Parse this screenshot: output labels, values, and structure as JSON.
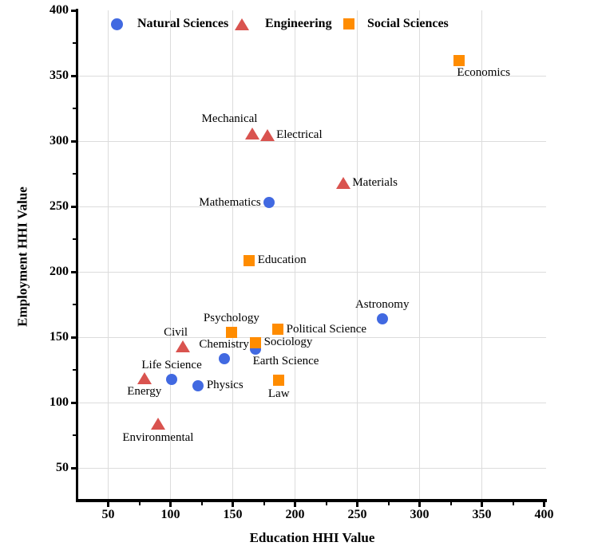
{
  "chart_data": {
    "type": "scatter",
    "title": "",
    "xlabel": "Education HHI Value",
    "ylabel": "Employment HHI Value",
    "xlim": [
      25,
      400
    ],
    "ylim": [
      25,
      400
    ],
    "x_ticks": [
      50,
      100,
      150,
      200,
      250,
      300,
      350,
      400
    ],
    "y_ticks": [
      50,
      100,
      150,
      200,
      250,
      300,
      350,
      400
    ],
    "minor_ticks_x": [
      75,
      125,
      175,
      225,
      275,
      325,
      375
    ],
    "minor_ticks_y": [
      75,
      125,
      175,
      225,
      275,
      325,
      375
    ],
    "grid": "major only, values 50-350, light gray",
    "grid_color": "#dcdcdc",
    "axis_color": "#000000",
    "legend_position": "top-inside, horizontal, no frame",
    "series": [
      {
        "name": "Natural Sciences",
        "marker": "circle",
        "color": "#4169E1",
        "points": [
          {
            "label": "Mathematics",
            "x": 179,
            "y": 253,
            "label_pos": "left"
          },
          {
            "label": "Astronomy",
            "x": 270,
            "y": 164,
            "label_pos": "above"
          },
          {
            "label": "Chemistry",
            "x": 143,
            "y": 134,
            "label_pos": "above"
          },
          {
            "label": "Earth Science",
            "x": 168,
            "y": 141,
            "label_pos": "below-right"
          },
          {
            "label": "Life Science",
            "x": 101,
            "y": 118,
            "label_pos": "above"
          },
          {
            "label": "Physics",
            "x": 122,
            "y": 113,
            "label_pos": "right"
          }
        ]
      },
      {
        "name": "Engineering",
        "marker": "triangle",
        "color": "#D9534F",
        "points": [
          {
            "label": "Mechanical",
            "x": 166,
            "y": 306,
            "label_pos": "above-left"
          },
          {
            "label": "Electrical",
            "x": 178,
            "y": 305,
            "label_pos": "right"
          },
          {
            "label": "Materials",
            "x": 239,
            "y": 268,
            "label_pos": "right"
          },
          {
            "label": "Civil",
            "x": 110,
            "y": 143,
            "label_pos": "above-left"
          },
          {
            "label": "Energy",
            "x": 79,
            "y": 119,
            "label_pos": "below"
          },
          {
            "label": "Environmental",
            "x": 90,
            "y": 84,
            "label_pos": "below"
          }
        ]
      },
      {
        "name": "Social Sciences",
        "marker": "square",
        "color": "#FF8C00",
        "points": [
          {
            "label": "Economics",
            "x": 332,
            "y": 362,
            "label_pos": "below-right"
          },
          {
            "label": "Education",
            "x": 163,
            "y": 209,
            "label_pos": "right"
          },
          {
            "label": "Psychology",
            "x": 149,
            "y": 154,
            "label_pos": "above"
          },
          {
            "label": "Political Science",
            "x": 186,
            "y": 156,
            "label_pos": "right"
          },
          {
            "label": "Sociology",
            "x": 168,
            "y": 146,
            "label_pos": "right"
          },
          {
            "label": "Law",
            "x": 187,
            "y": 117,
            "label_pos": "below"
          }
        ]
      }
    ]
  }
}
